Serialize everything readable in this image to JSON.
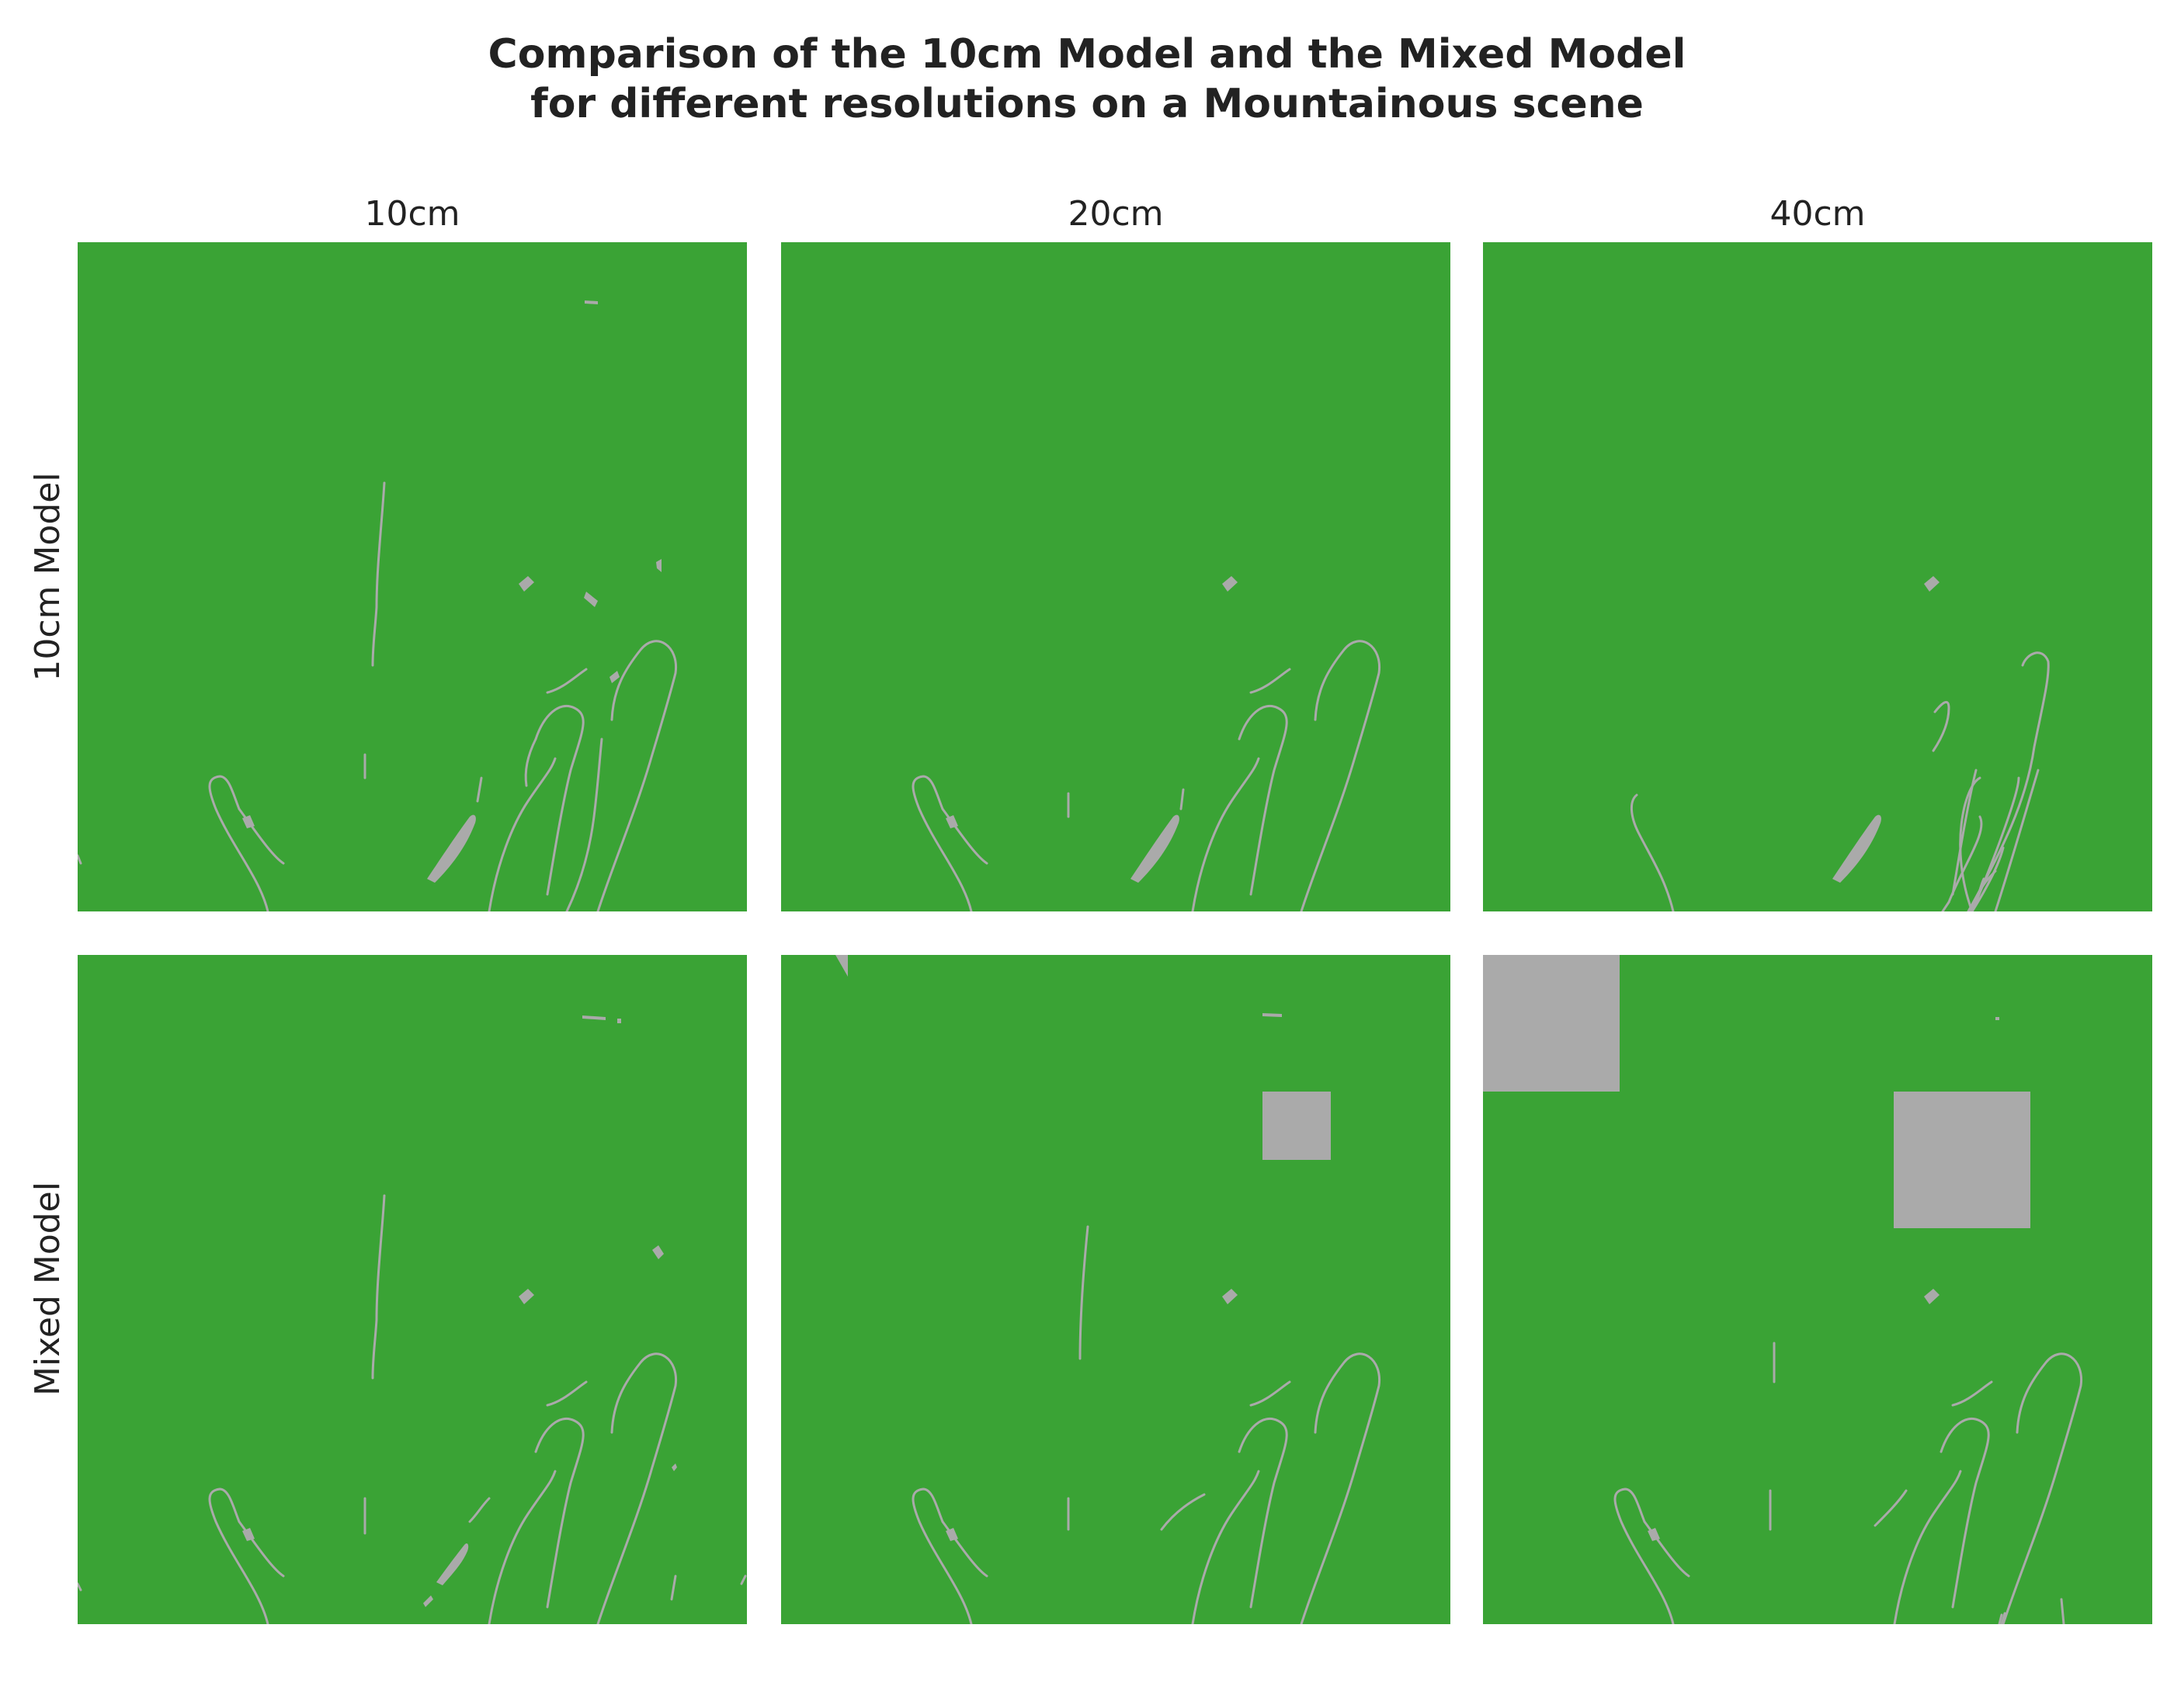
{
  "title": {
    "line1": "Comparison of the 10cm Model and the Mixed Model",
    "line2": "for different resolutions on a Mountainous scene"
  },
  "columns": [
    {
      "label": "10cm"
    },
    {
      "label": "20cm"
    },
    {
      "label": "40cm"
    }
  ],
  "rows": [
    {
      "label": "10cm Model"
    },
    {
      "label": "Mixed Model"
    }
  ],
  "colors": {
    "background_class": "#3aa335",
    "feature_class": "#aaaaaa",
    "page": "#ffffff"
  }
}
